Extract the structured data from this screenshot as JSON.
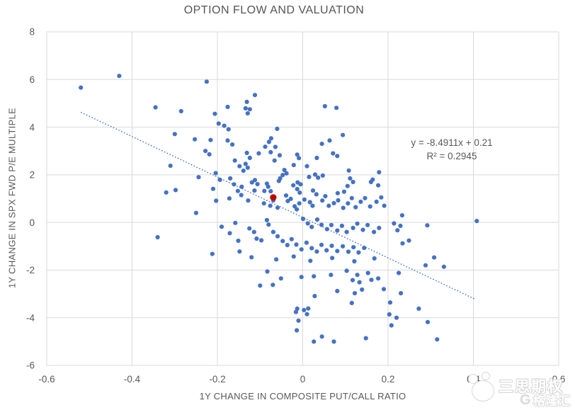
{
  "title": "OPTION FLOW AND VALUATION",
  "annotation": {
    "equation": "y = -8.4911x + 0.21",
    "r_squared": "R² = 0.2945"
  },
  "watermark": {
    "brand": "三思期权",
    "platform": "格隆汇",
    "logo_letter": "G"
  },
  "colors": {
    "point_blue": "#4472C4",
    "point_red": "#C00000",
    "grid": "#D9D9D9",
    "text": "#595959",
    "trendline": "#4472C4"
  },
  "chart_data": {
    "type": "scatter",
    "title": "OPTION FLOW AND VALUATION",
    "xlabel": "1Y CHANGE IN COMPOSITE PUT/CALL RATIO",
    "ylabel": "1Y CHANGE IN SPX FWD P/E MULTIPLE",
    "xlim": [
      -0.6,
      0.6
    ],
    "ylim": [
      -6,
      8
    ],
    "xticks": [
      -0.6,
      -0.4,
      -0.2,
      0,
      0.2,
      0.4,
      0.6
    ],
    "xtick_labels": [
      "-0.6",
      "-0.4",
      "-0.2",
      "0",
      "0.2",
      "0.4",
      "0.6"
    ],
    "yticks": [
      -6,
      -4,
      -2,
      0,
      2,
      4,
      6,
      8
    ],
    "ytick_labels": [
      "-6",
      "-4",
      "-2",
      "0",
      "2",
      "4",
      "6",
      "8"
    ],
    "grid": true,
    "legend": "none",
    "trendline": {
      "slope": -8.4911,
      "intercept": 0.21,
      "x_start": -0.52,
      "x_end": 0.404,
      "style": "dotted",
      "color": "#4472C4",
      "equation_label": "y = -8.4911x + 0.21",
      "r2_label": "R² = 0.2945"
    },
    "series": [
      {
        "name": "observations",
        "color": "#4472C4",
        "marker_radius": 3.1,
        "points": [
          [
            -0.52,
            5.66
          ],
          [
            -0.43,
            6.15
          ],
          [
            -0.345,
            4.83
          ],
          [
            -0.285,
            4.67
          ],
          [
            -0.225,
            5.91
          ],
          [
            -0.206,
            4.56
          ],
          [
            -0.3,
            3.71
          ],
          [
            -0.253,
            3.49
          ],
          [
            -0.216,
            3.46
          ],
          [
            -0.228,
            3.0
          ],
          [
            -0.219,
            2.86
          ],
          [
            -0.31,
            2.38
          ],
          [
            -0.244,
            1.9
          ],
          [
            -0.204,
            2.07
          ],
          [
            -0.32,
            1.26
          ],
          [
            -0.298,
            1.36
          ],
          [
            -0.21,
            1.41
          ],
          [
            -0.25,
            0.4
          ],
          [
            -0.34,
            -0.62
          ],
          [
            -0.203,
            0.91
          ],
          [
            -0.212,
            -1.32
          ],
          [
            -0.176,
            4.85
          ],
          [
            -0.112,
            5.35
          ],
          [
            -0.131,
            5.06
          ],
          [
            -0.134,
            4.79
          ],
          [
            -0.124,
            4.75
          ],
          [
            -0.129,
            4.58
          ],
          [
            -0.197,
            4.15
          ],
          [
            -0.184,
            4.06
          ],
          [
            -0.174,
            3.91
          ],
          [
            -0.06,
            3.93
          ],
          [
            -0.176,
            3.44
          ],
          [
            -0.165,
            3.27
          ],
          [
            -0.074,
            3.53
          ],
          [
            -0.079,
            3.38
          ],
          [
            -0.088,
            3.18
          ],
          [
            -0.064,
            3.17
          ],
          [
            0.045,
            3.3
          ],
          [
            0.063,
            3.44
          ],
          [
            0.094,
            3.67
          ],
          [
            0.052,
            4.88
          ],
          [
            0.079,
            4.81
          ],
          [
            -0.075,
            2.95
          ],
          [
            -0.066,
            2.6
          ],
          [
            -0.054,
            2.82
          ],
          [
            -0.131,
            2.92
          ],
          [
            -0.124,
            2.71
          ],
          [
            -0.103,
            2.9
          ],
          [
            -0.134,
            2.46
          ],
          [
            -0.129,
            2.3
          ],
          [
            -0.139,
            2.17
          ],
          [
            -0.159,
            2.6
          ],
          [
            -0.148,
            2.36
          ],
          [
            0.071,
            2.9
          ],
          [
            0.081,
            2.79
          ],
          [
            0.033,
            2.71
          ],
          [
            -0.013,
            2.85
          ],
          [
            -0.009,
            2.7
          ],
          [
            -0.021,
            2.41
          ],
          [
            -0.043,
            2.2
          ],
          [
            -0.038,
            2.06
          ],
          [
            -0.047,
            1.99
          ],
          [
            -0.053,
            1.85
          ],
          [
            -0.056,
            1.74
          ],
          [
            0.01,
            2.36
          ],
          [
            0.015,
            1.91
          ],
          [
            0.029,
            2.01
          ],
          [
            0.036,
            1.88
          ],
          [
            0.047,
            1.97
          ],
          [
            0.108,
            2.18
          ],
          [
            0.111,
            1.85
          ],
          [
            0.118,
            1.7
          ],
          [
            0.105,
            1.53
          ],
          [
            0.097,
            1.29
          ],
          [
            0.082,
            1.23
          ],
          [
            -0.012,
            1.68
          ],
          [
            -0.005,
            1.6
          ],
          [
            -0.022,
            1.56
          ],
          [
            -0.013,
            1.4
          ],
          [
            -0.007,
            1.25
          ],
          [
            0.024,
            1.34
          ],
          [
            0.032,
            1.18
          ],
          [
            -0.112,
            1.78
          ],
          [
            -0.119,
            1.68
          ],
          [
            -0.106,
            1.61
          ],
          [
            -0.17,
            1.85
          ],
          [
            -0.161,
            1.6
          ],
          [
            -0.152,
            1.32
          ],
          [
            -0.144,
            1.15
          ],
          [
            -0.084,
            1.63
          ],
          [
            -0.081,
            1.5
          ],
          [
            -0.09,
            1.32
          ],
          [
            -0.075,
            1.31
          ],
          [
            0.16,
            1.7
          ],
          [
            0.177,
            1.56
          ],
          [
            0.164,
            1.8
          ],
          [
            0.179,
            2.11
          ],
          [
            -0.194,
            1.79
          ],
          [
            -0.172,
            1.01
          ],
          [
            -0.143,
            1.5
          ],
          [
            -0.113,
            1.34
          ],
          [
            -0.128,
            0.92
          ],
          [
            -0.091,
            0.8
          ],
          [
            -0.076,
            0.7
          ],
          [
            -0.069,
            0.93
          ],
          [
            -0.059,
            0.62
          ],
          [
            -0.039,
            1.13
          ],
          [
            -0.035,
            0.9
          ],
          [
            -0.028,
            0.99
          ],
          [
            -0.019,
            0.68
          ],
          [
            -0.014,
            0.55
          ],
          [
            -0.008,
            0.8
          ],
          [
            0.004,
            0.96
          ],
          [
            0.017,
            0.85
          ],
          [
            0.023,
            0.7
          ],
          [
            0.046,
            0.92
          ],
          [
            0.053,
            1.1
          ],
          [
            0.061,
            0.7
          ],
          [
            0.073,
            0.81
          ],
          [
            0.083,
            0.93
          ],
          [
            0.095,
            0.61
          ],
          [
            0.106,
            0.8
          ],
          [
            0.115,
            1.02
          ],
          [
            0.124,
            0.64
          ],
          [
            0.136,
            0.87
          ],
          [
            0.146,
            1.02
          ],
          [
            0.158,
            0.67
          ],
          [
            0.173,
            0.87
          ],
          [
            0.184,
            1.05
          ],
          [
            0.191,
            0.7
          ],
          [
            0.001,
            0.15
          ],
          [
            0.012,
            -0.04
          ],
          [
            0.021,
            -0.19
          ],
          [
            0.034,
            0.12
          ],
          [
            0.044,
            -0.1
          ],
          [
            0.057,
            -0.28
          ],
          [
            0.067,
            -0.11
          ],
          [
            0.081,
            -0.34
          ],
          [
            0.092,
            -0.14
          ],
          [
            0.103,
            -0.4
          ],
          [
            0.118,
            -0.23
          ],
          [
            0.128,
            -0.05
          ],
          [
            0.141,
            -0.31
          ],
          [
            0.152,
            -0.11
          ],
          [
            0.167,
            -0.4
          ],
          [
            0.179,
            -0.23
          ],
          [
            -0.19,
            -0.18
          ],
          [
            -0.158,
            -0.02
          ],
          [
            -0.125,
            -0.25
          ],
          [
            -0.114,
            -0.4
          ],
          [
            -0.084,
            0.1
          ],
          [
            -0.08,
            -0.09
          ],
          [
            -0.069,
            -0.4
          ],
          [
            0.233,
            0.3
          ],
          [
            0.214,
            -0.04
          ],
          [
            0.229,
            -0.14
          ],
          [
            0.222,
            -0.33
          ],
          [
            0.292,
            -0.12
          ],
          [
            0.408,
            0.06
          ],
          [
            -0.171,
            -0.45
          ],
          [
            -0.151,
            -0.77
          ],
          [
            -0.108,
            -0.68
          ],
          [
            -0.097,
            -0.75
          ],
          [
            -0.059,
            -0.58
          ],
          [
            -0.047,
            -0.78
          ],
          [
            -0.036,
            -0.95
          ],
          [
            -0.026,
            -0.7
          ],
          [
            -0.015,
            -0.93
          ],
          [
            -0.003,
            -1.13
          ],
          [
            0.009,
            -0.85
          ],
          [
            0.021,
            -1.08
          ],
          [
            0.033,
            -1.22
          ],
          [
            0.044,
            -0.94
          ],
          [
            0.056,
            -1.17
          ],
          [
            0.068,
            -0.98
          ],
          [
            0.081,
            -1.2
          ],
          [
            0.094,
            -1.0
          ],
          [
            0.107,
            -1.23
          ],
          [
            0.119,
            -1.04
          ],
          [
            0.131,
            -1.26
          ],
          [
            0.144,
            -1.07
          ],
          [
            0.234,
            -0.88
          ],
          [
            0.249,
            -0.76
          ],
          [
            -0.148,
            -1.22
          ],
          [
            -0.12,
            -1.46
          ],
          [
            -0.062,
            -1.55
          ],
          [
            -0.021,
            -1.43
          ],
          [
            0.018,
            -1.61
          ],
          [
            0.069,
            -1.49
          ],
          [
            0.121,
            -1.63
          ],
          [
            0.168,
            -1.51
          ],
          [
            0.308,
            -1.47
          ],
          [
            0.288,
            -1.8
          ],
          [
            0.331,
            -1.86
          ],
          [
            -0.083,
            -2.06
          ],
          [
            -0.1,
            -2.65
          ],
          [
            -0.07,
            -2.62
          ],
          [
            -0.051,
            -2.35
          ],
          [
            -0.003,
            -2.29
          ],
          [
            0.026,
            -2.26
          ],
          [
            0.066,
            -2.2
          ],
          [
            0.103,
            -2.03
          ],
          [
            0.117,
            -2.42
          ],
          [
            0.128,
            -2.2
          ],
          [
            0.133,
            -2.51
          ],
          [
            0.153,
            -2.12
          ],
          [
            0.161,
            -2.41
          ],
          [
            0.177,
            -2.35
          ],
          [
            0.225,
            -2.12
          ],
          [
            0.081,
            -2.88
          ],
          [
            0.122,
            -2.97
          ],
          [
            0.139,
            -2.82
          ],
          [
            0.19,
            -2.8
          ],
          [
            0.23,
            -2.97
          ],
          [
            0.028,
            -3.09
          ],
          [
            0.115,
            -3.38
          ],
          [
            0.205,
            -3.36
          ],
          [
            0.272,
            -3.62
          ],
          [
            -0.013,
            -3.62
          ],
          [
            0.003,
            -3.68
          ],
          [
            0.013,
            -3.61
          ],
          [
            -0.016,
            -3.76
          ],
          [
            0.01,
            -3.85
          ],
          [
            0.203,
            -3.86
          ],
          [
            0.22,
            -4.0
          ],
          [
            -0.01,
            -4.12
          ],
          [
            -0.014,
            -4.53
          ],
          [
            0.208,
            -4.32
          ],
          [
            0.293,
            -4.18
          ],
          [
            0.026,
            -5.0
          ],
          [
            0.045,
            -4.79
          ],
          [
            0.073,
            -5.0
          ],
          [
            0.148,
            -4.86
          ],
          [
            0.315,
            -4.91
          ]
        ]
      },
      {
        "name": "highlighted-observation",
        "color": "#C00000",
        "marker_radius": 4.6,
        "points": [
          [
            -0.069,
            1.05
          ]
        ]
      }
    ]
  }
}
